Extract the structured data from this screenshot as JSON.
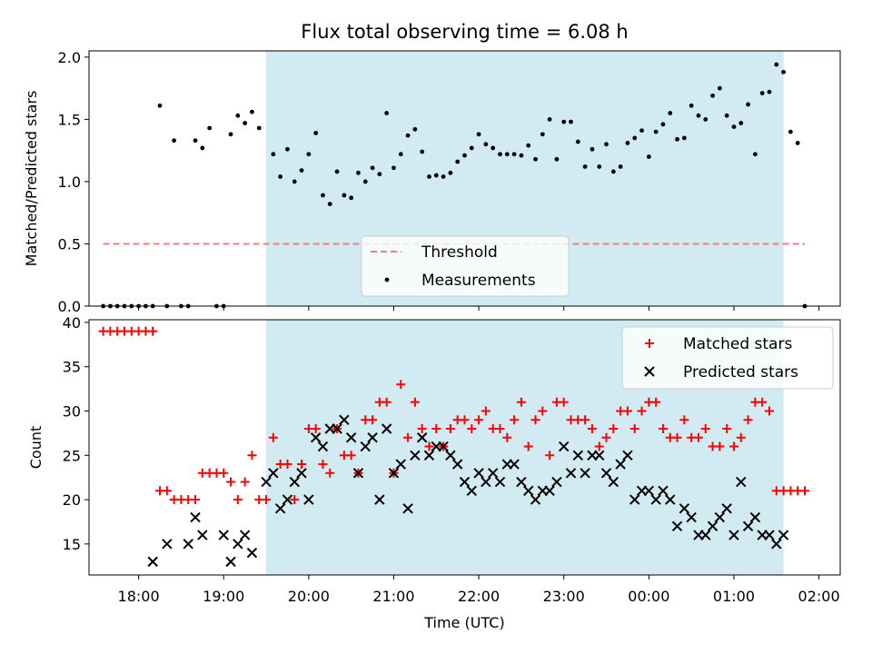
{
  "chart_data": [
    {
      "type": "scatter",
      "title": "Flux total observing time = 6.08 h",
      "xlabel": "",
      "ylabel": "Matched/Predicted stars",
      "xlim": [
        "17:25",
        "02:15"
      ],
      "ylim": [
        0,
        2.05
      ],
      "yticks": [
        0.0,
        0.5,
        1.0,
        1.5,
        2.0
      ],
      "ytick_labels": [
        "0.0",
        "0.5",
        "1.0",
        "1.5",
        "2.0"
      ],
      "shaded_region": {
        "start": "19:30",
        "end": "01:35",
        "color": "#add8e6"
      },
      "legend": {
        "position": "lower center",
        "entries": [
          "Threshold",
          "Measurements"
        ]
      },
      "series": [
        {
          "name": "Threshold",
          "kind": "dashed-line",
          "color": "#f08080",
          "x": [
            "17:35",
            "01:50"
          ],
          "y": [
            0.5,
            0.5
          ]
        },
        {
          "name": "Measurements",
          "kind": "dots",
          "color": "#000000",
          "x": [
            "17:35",
            "17:40",
            "17:45",
            "17:50",
            "17:55",
            "18:00",
            "18:05",
            "18:10",
            "18:15",
            "18:20",
            "18:25",
            "18:30",
            "18:35",
            "18:40",
            "18:45",
            "18:50",
            "18:55",
            "19:00",
            "19:05",
            "19:10",
            "19:15",
            "19:20",
            "19:25",
            "19:35",
            "19:40",
            "19:45",
            "19:50",
            "19:55",
            "20:00",
            "20:05",
            "20:10",
            "20:15",
            "20:20",
            "20:25",
            "20:30",
            "20:35",
            "20:40",
            "20:45",
            "20:50",
            "20:55",
            "21:00",
            "21:05",
            "21:10",
            "21:15",
            "21:20",
            "21:25",
            "21:30",
            "21:35",
            "21:40",
            "21:45",
            "21:50",
            "21:55",
            "22:00",
            "22:05",
            "22:10",
            "22:15",
            "22:20",
            "22:25",
            "22:30",
            "22:35",
            "22:40",
            "22:45",
            "22:50",
            "22:55",
            "23:00",
            "23:05",
            "23:10",
            "23:15",
            "23:20",
            "23:25",
            "23:30",
            "23:35",
            "23:40",
            "23:45",
            "23:50",
            "23:55",
            "00:00",
            "00:05",
            "00:10",
            "00:15",
            "00:20",
            "00:25",
            "00:30",
            "00:35",
            "00:40",
            "00:45",
            "00:50",
            "00:55",
            "01:00",
            "01:05",
            "01:10",
            "01:15",
            "01:20",
            "01:25",
            "01:30",
            "01:35",
            "01:40",
            "01:45",
            "01:50"
          ],
          "y": [
            0,
            0,
            0,
            0,
            0,
            0,
            0,
            0,
            1.61,
            0,
            1.33,
            0,
            0,
            1.33,
            1.27,
            1.43,
            0,
            0,
            1.38,
            1.53,
            1.47,
            1.56,
            1.43,
            1.22,
            1.04,
            1.26,
            1.0,
            1.09,
            1.22,
            1.39,
            0.89,
            0.82,
            1.08,
            0.89,
            0.87,
            1.07,
            1.0,
            1.11,
            1.06,
            1.55,
            1.11,
            1.22,
            1.37,
            1.42,
            1.24,
            1.04,
            1.05,
            1.04,
            1.07,
            1.16,
            1.21,
            1.27,
            1.38,
            1.3,
            1.27,
            1.22,
            1.22,
            1.22,
            1.21,
            1.29,
            1.18,
            1.38,
            1.5,
            1.18,
            1.48,
            1.48,
            1.32,
            1.12,
            1.26,
            1.12,
            1.3,
            1.08,
            1.12,
            1.31,
            1.35,
            1.41,
            1.2,
            1.4,
            1.46,
            1.55,
            1.34,
            1.35,
            1.61,
            1.53,
            1.5,
            1.69,
            1.75,
            1.53,
            1.44,
            1.47,
            1.62,
            1.22,
            1.71,
            1.72,
            1.94,
            1.88,
            1.4,
            1.31,
            0
          ]
        }
      ]
    },
    {
      "type": "scatter",
      "title": "",
      "xlabel": "Time (UTC)",
      "ylabel": "Count",
      "xlim": [
        "17:25",
        "02:15"
      ],
      "xticks": [
        "18:00",
        "19:00",
        "20:00",
        "21:00",
        "22:00",
        "23:00",
        "00:00",
        "01:00",
        "02:00"
      ],
      "ylim": [
        11.5,
        40.3
      ],
      "yticks": [
        15,
        20,
        25,
        30,
        35,
        40
      ],
      "ytick_labels": [
        "15",
        "20",
        "25",
        "30",
        "35",
        "40"
      ],
      "shaded_region": {
        "start": "19:30",
        "end": "01:35",
        "color": "#add8e6"
      },
      "legend": {
        "position": "upper right",
        "entries": [
          "Matched stars",
          "Predicted stars"
        ]
      },
      "series": [
        {
          "name": "Matched stars",
          "marker": "+",
          "color": "#ff0000",
          "x": [
            "17:35",
            "17:40",
            "17:45",
            "17:50",
            "17:55",
            "18:00",
            "18:05",
            "18:10",
            "18:15",
            "18:20",
            "18:25",
            "18:30",
            "18:35",
            "18:40",
            "18:45",
            "18:50",
            "18:55",
            "19:00",
            "19:05",
            "19:10",
            "19:15",
            "19:20",
            "19:25",
            "19:30",
            "19:35",
            "19:40",
            "19:45",
            "19:50",
            "19:55",
            "20:00",
            "20:05",
            "20:10",
            "20:15",
            "20:20",
            "20:25",
            "20:30",
            "20:35",
            "20:40",
            "20:45",
            "20:50",
            "20:55",
            "21:00",
            "21:05",
            "21:10",
            "21:15",
            "21:20",
            "21:25",
            "21:30",
            "21:35",
            "21:40",
            "21:45",
            "21:50",
            "21:55",
            "22:00",
            "22:05",
            "22:10",
            "22:15",
            "22:20",
            "22:25",
            "22:30",
            "22:35",
            "22:40",
            "22:45",
            "22:50",
            "22:55",
            "23:00",
            "23:05",
            "23:10",
            "23:15",
            "23:20",
            "23:25",
            "23:30",
            "23:35",
            "23:40",
            "23:45",
            "23:50",
            "23:55",
            "00:00",
            "00:05",
            "00:10",
            "00:15",
            "00:20",
            "00:25",
            "00:30",
            "00:35",
            "00:40",
            "00:45",
            "00:50",
            "00:55",
            "01:00",
            "01:05",
            "01:10",
            "01:15",
            "01:20",
            "01:25",
            "01:30",
            "01:35",
            "01:40",
            "01:45",
            "01:50"
          ],
          "y": [
            39,
            39,
            39,
            39,
            39,
            39,
            39,
            39,
            21,
            21,
            20,
            20,
            20,
            20,
            23,
            23,
            23,
            23,
            22,
            20,
            22,
            25,
            20,
            20,
            27,
            24,
            24,
            20,
            24,
            28,
            28,
            24,
            23,
            28,
            25,
            25,
            23,
            29,
            29,
            31,
            31,
            23,
            33,
            27,
            31,
            28,
            26,
            28,
            26,
            28,
            29,
            29,
            28,
            29,
            30,
            28,
            28,
            27,
            29,
            31,
            26,
            29,
            30,
            25,
            31,
            31,
            29,
            29,
            29,
            28,
            26,
            27,
            28,
            30,
            30,
            28,
            30,
            31,
            31,
            28,
            27,
            27,
            29,
            27,
            27,
            28,
            26,
            26,
            28,
            26,
            27,
            29,
            31,
            31,
            30,
            21,
            21,
            21,
            21,
            21
          ]
        },
        {
          "name": "Predicted stars",
          "marker": "x",
          "color": "#000000",
          "x": [
            "18:10",
            "18:20",
            "18:35",
            "18:40",
            "18:45",
            "19:00",
            "19:05",
            "19:10",
            "19:15",
            "19:20",
            "19:30",
            "19:35",
            "19:40",
            "19:45",
            "19:50",
            "19:55",
            "20:00",
            "20:05",
            "20:10",
            "20:15",
            "20:20",
            "20:25",
            "20:30",
            "20:35",
            "20:40",
            "20:45",
            "20:50",
            "20:55",
            "21:00",
            "21:05",
            "21:10",
            "21:15",
            "21:20",
            "21:25",
            "21:30",
            "21:35",
            "21:40",
            "21:45",
            "21:50",
            "21:55",
            "22:00",
            "22:05",
            "22:10",
            "22:15",
            "22:20",
            "22:25",
            "22:30",
            "22:35",
            "22:40",
            "22:45",
            "22:50",
            "22:55",
            "23:00",
            "23:05",
            "23:10",
            "23:15",
            "23:20",
            "23:25",
            "23:30",
            "23:35",
            "23:40",
            "23:45",
            "23:50",
            "23:55",
            "00:00",
            "00:05",
            "00:10",
            "00:15",
            "00:20",
            "00:25",
            "00:30",
            "00:35",
            "00:40",
            "00:45",
            "00:50",
            "00:55",
            "01:00",
            "01:05",
            "01:10",
            "01:15",
            "01:20",
            "01:25",
            "01:30",
            "01:35"
          ],
          "y": [
            13,
            15,
            15,
            18,
            16,
            16,
            13,
            15,
            16,
            14,
            22,
            23,
            19,
            20,
            22,
            23,
            20,
            27,
            26,
            28,
            28,
            29,
            27,
            23,
            26,
            27,
            20,
            28,
            23,
            24,
            19,
            25,
            27,
            25,
            26,
            26,
            25,
            24,
            22,
            21,
            23,
            22,
            23,
            22,
            24,
            24,
            22,
            21,
            20,
            21,
            21,
            22,
            26,
            23,
            25,
            23,
            25,
            25,
            23,
            22,
            24,
            25,
            20,
            21,
            21,
            20,
            21,
            20,
            17,
            19,
            18,
            16,
            16,
            17,
            18,
            19,
            16,
            22,
            17,
            18,
            16,
            16,
            15,
            16
          ]
        }
      ]
    }
  ]
}
